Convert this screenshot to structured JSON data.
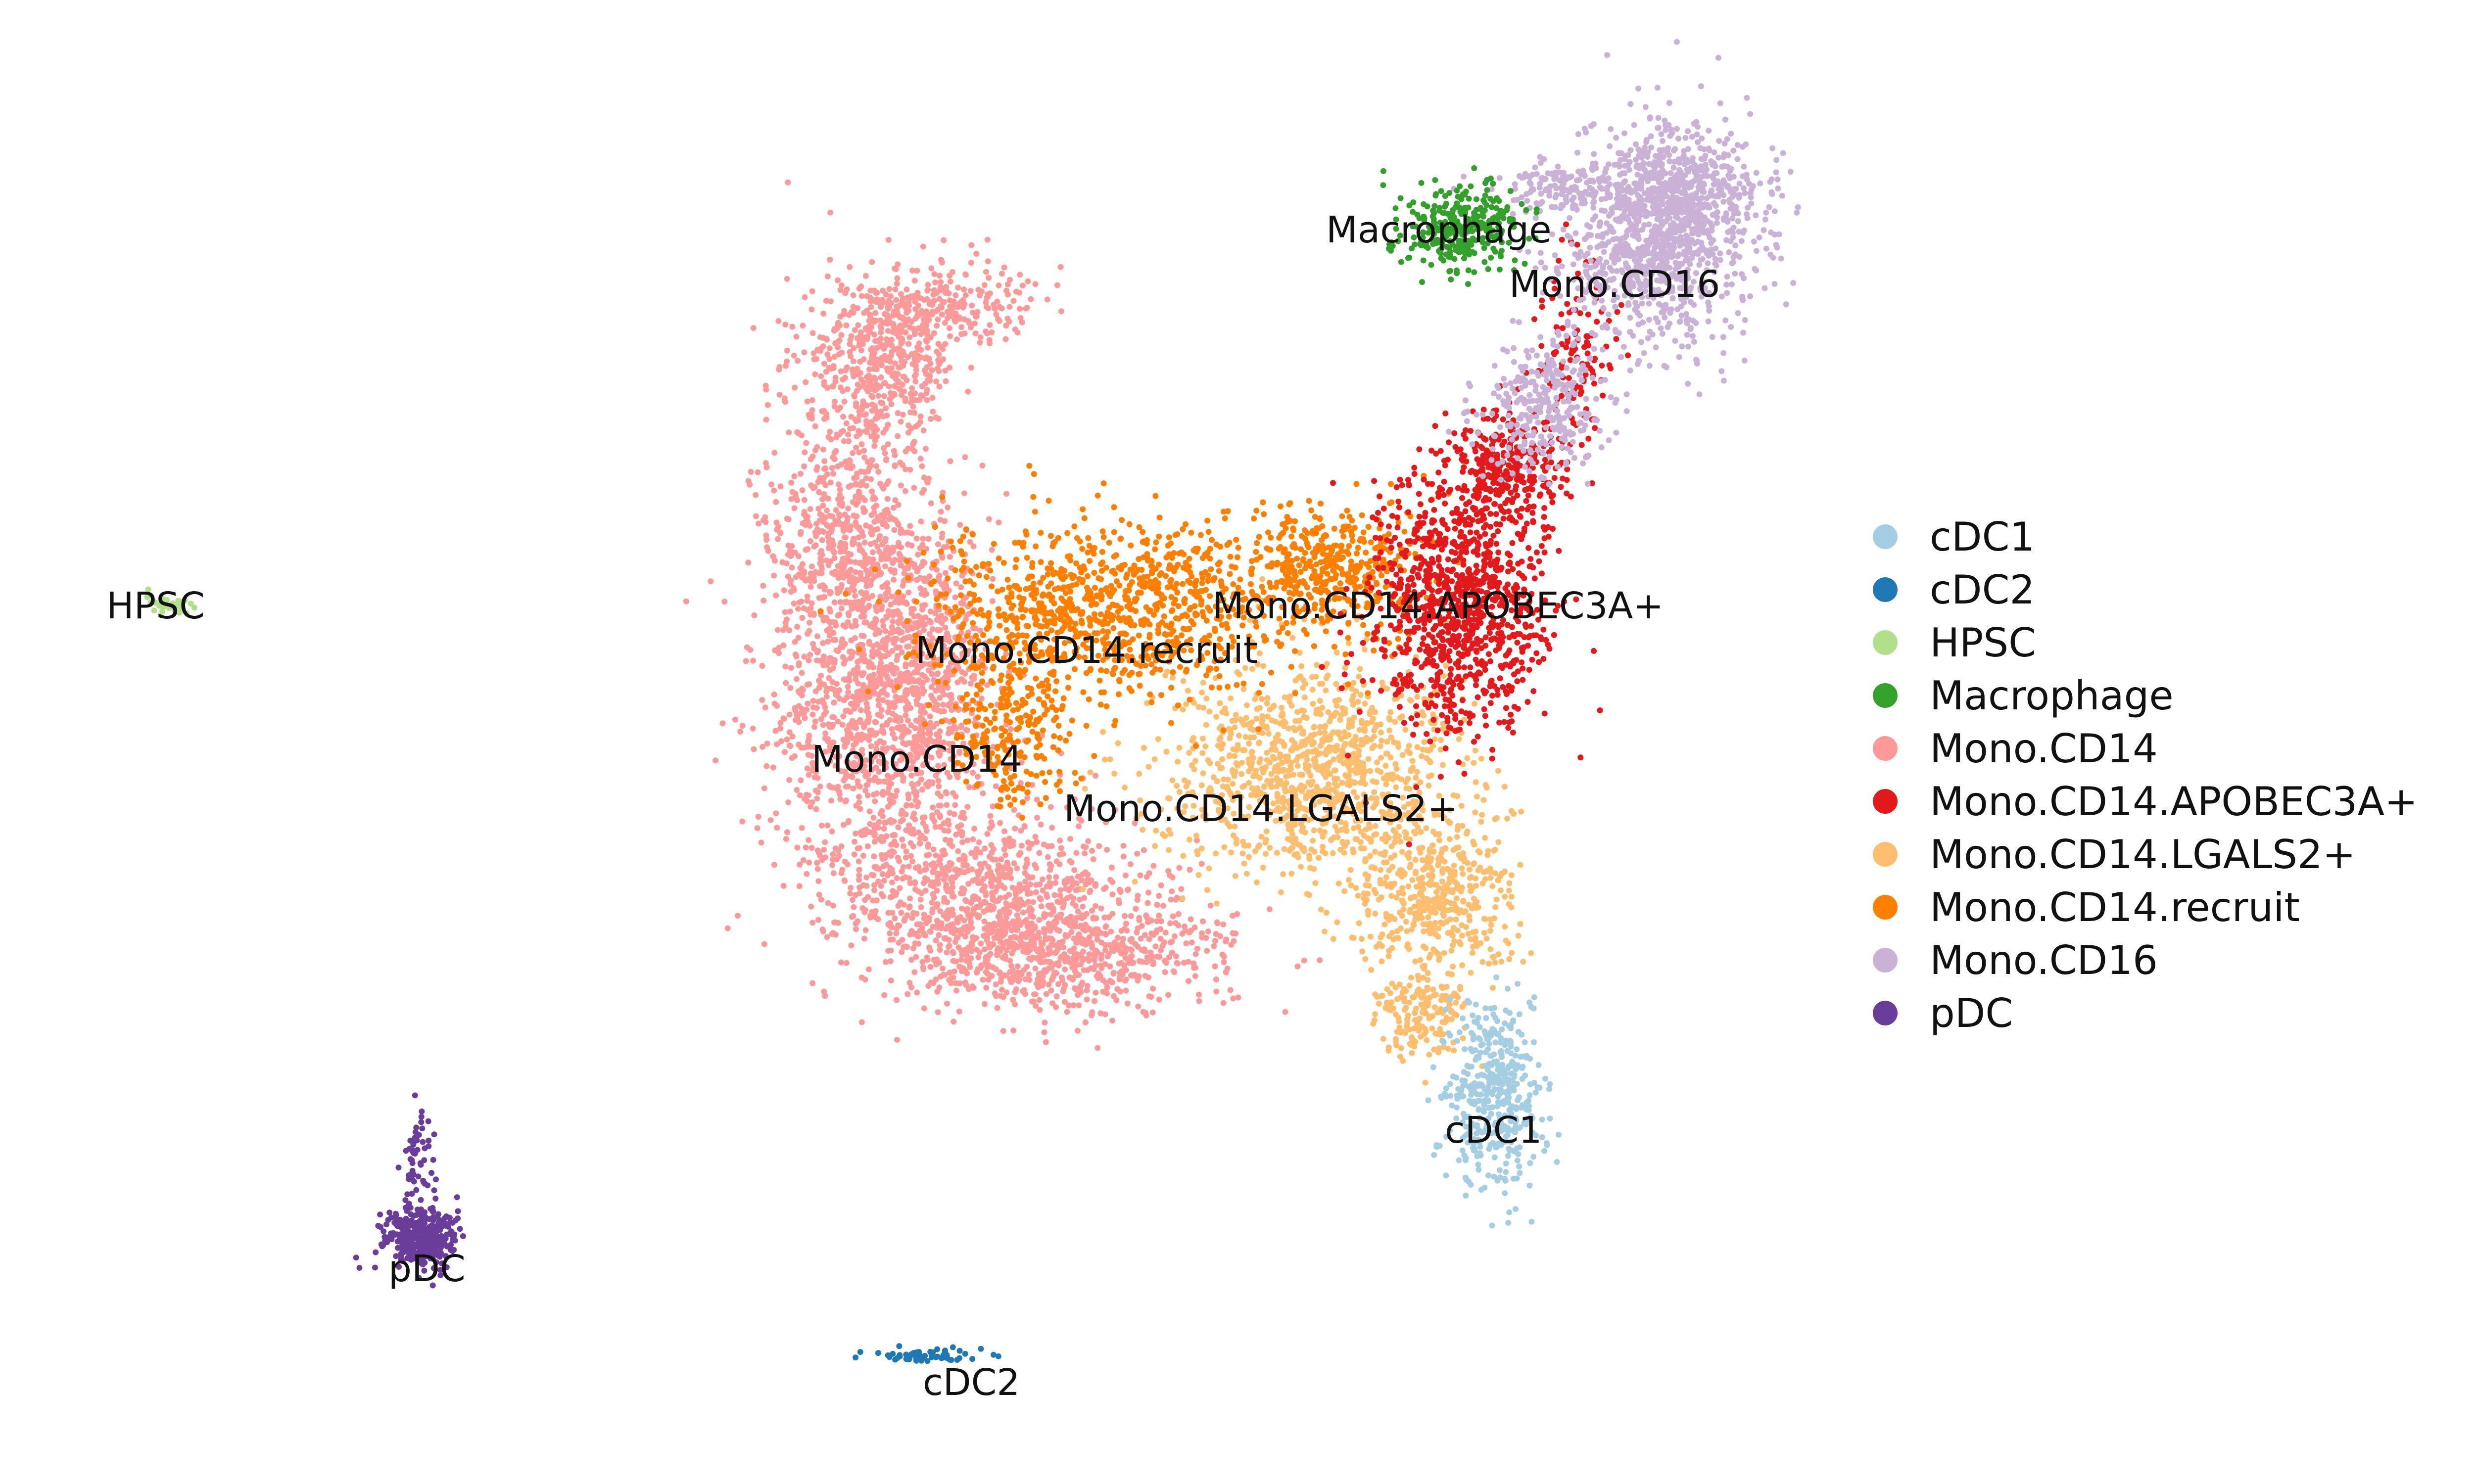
{
  "chart_data": {
    "type": "scatter",
    "title": "",
    "xlabel": "",
    "ylabel": "",
    "axes_visible": false,
    "grid": false,
    "legend_position": "right",
    "series": [
      {
        "name": "cDC1",
        "color": "#a6cee3"
      },
      {
        "name": "cDC2",
        "color": "#1f78b4"
      },
      {
        "name": "HPSC",
        "color": "#b2df8a"
      },
      {
        "name": "Macrophage",
        "color": "#33a02c"
      },
      {
        "name": "Mono.CD14",
        "color": "#fb9a99"
      },
      {
        "name": "Mono.CD14.APOBEC3A+",
        "color": "#e31a1c"
      },
      {
        "name": "Mono.CD14.LGALS2+",
        "color": "#fdbf6f"
      },
      {
        "name": "Mono.CD14.recruit",
        "color": "#ff7f00"
      },
      {
        "name": "Mono.CD16",
        "color": "#cab2d6"
      },
      {
        "name": "pDC",
        "color": "#6a3d9a"
      }
    ],
    "cluster_labels": [
      {
        "text": "Macrophage"
      },
      {
        "text": "Mono.CD16"
      },
      {
        "text": "HPSC"
      },
      {
        "text": "Mono.CD14.APOBEC3A+"
      },
      {
        "text": "Mono.CD14.recruit"
      },
      {
        "text": "Mono.CD14"
      },
      {
        "text": "Mono.CD14.LGALS2+"
      },
      {
        "text": "cDC1"
      },
      {
        "text": "pDC"
      },
      {
        "text": "cDC2"
      }
    ]
  }
}
